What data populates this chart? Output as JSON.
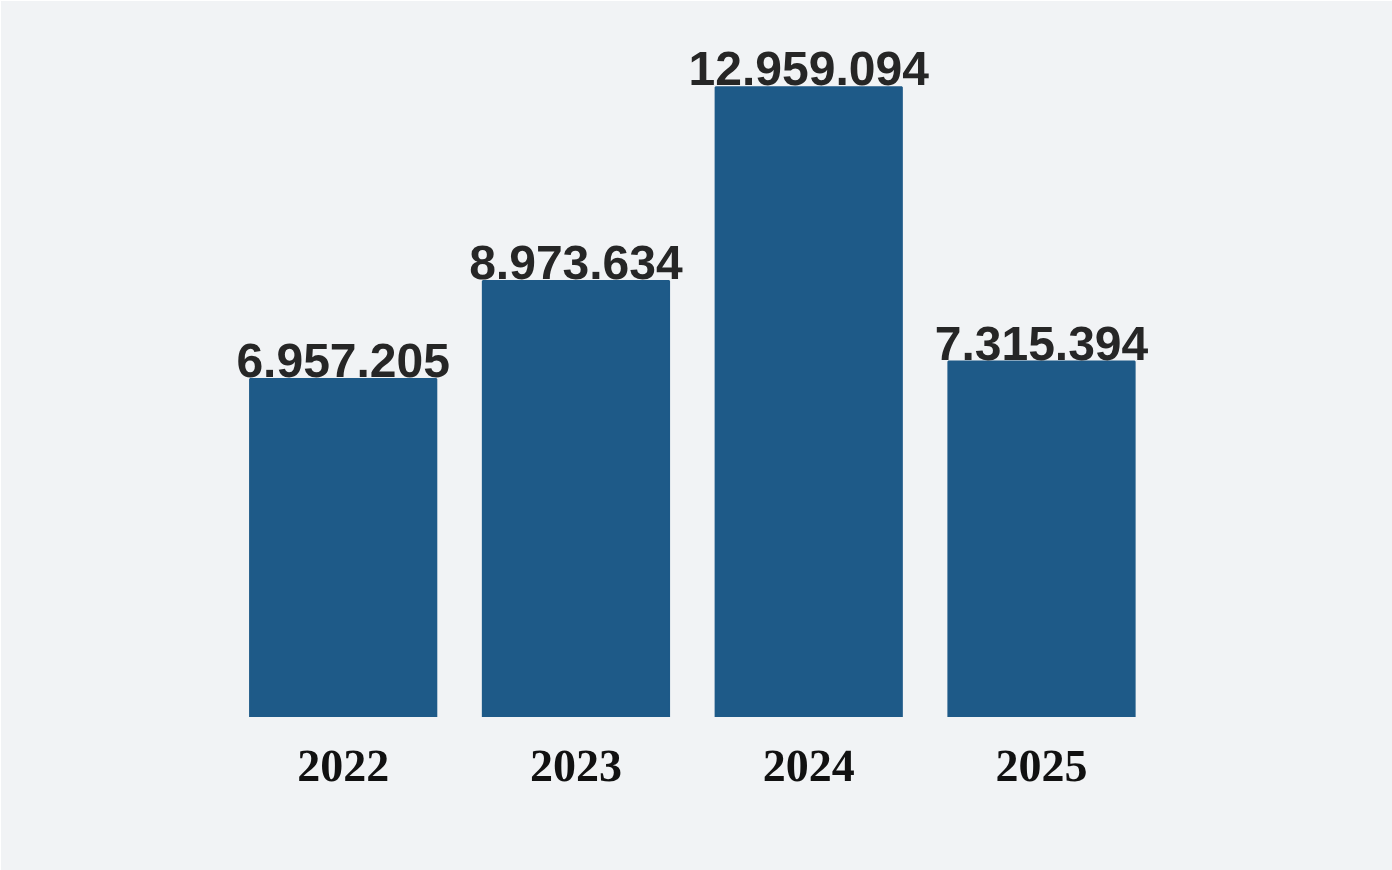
{
  "chart_data": {
    "type": "bar",
    "categories": [
      "2022",
      "2023",
      "2024",
      "2025"
    ],
    "values": [
      6957205,
      8973634,
      12959094,
      7315394
    ],
    "value_labels": [
      "6.957.205",
      "8.973.634",
      "12.959.094",
      "7.315.394"
    ],
    "color": "#1e5a88"
  }
}
